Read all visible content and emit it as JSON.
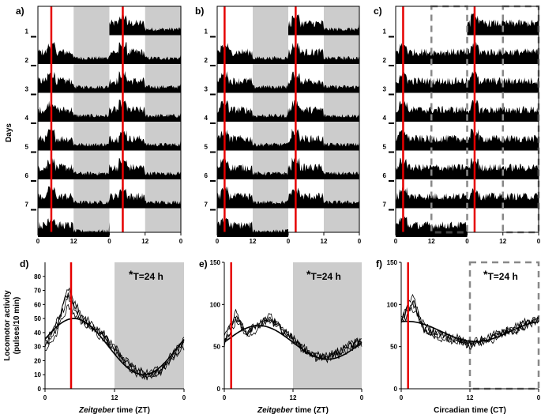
{
  "chart_data": [
    {
      "panel": "a)",
      "type": "actogram",
      "lights_off_shading": true,
      "ylabel": "Days",
      "day_labels": [
        "1",
        "2",
        "3",
        "4",
        "5",
        "6",
        "7"
      ],
      "x_ticks": [
        "0",
        "12",
        "0",
        "12",
        "0"
      ],
      "red_line_zt": 4.5
    },
    {
      "panel": "b)",
      "type": "actogram",
      "lights_off_shading": true,
      "day_labels": [
        "1",
        "2",
        "3",
        "4",
        "5",
        "6",
        "7"
      ],
      "x_ticks": [
        "0",
        "12",
        "0",
        "12",
        "0"
      ],
      "red_line_zt": 2.5
    },
    {
      "panel": "c)",
      "type": "actogram",
      "lights_off_shading": false,
      "dashed_subjective_night": true,
      "day_labels": [
        "1",
        "2",
        "3",
        "4",
        "5",
        "6",
        "7"
      ],
      "x_ticks": [
        "0",
        "12",
        "0",
        "12",
        "0"
      ],
      "red_line_zt": 2.5
    },
    {
      "panel": "d)",
      "type": "line",
      "annotation": "T=24 h",
      "annotation_star": "*",
      "ylabel": "Locomotor activity (pulses/10 min)",
      "ylim": [
        0,
        90
      ],
      "y_ticks": [
        "0",
        "10",
        "20",
        "30",
        "40",
        "50",
        "60",
        "70",
        "80"
      ],
      "x_ticks": [
        "0",
        "12",
        "0"
      ],
      "xlabel_italic": "Zeitgeber",
      "xlabel_rest": " time (ZT)",
      "red_line": 4.5,
      "dark_start": 12,
      "fit": {
        "mean": 30,
        "amp": 20,
        "peak": 5
      },
      "x": [
        0,
        2,
        4,
        6,
        8,
        10,
        12,
        14,
        16,
        18,
        20,
        22,
        24
      ],
      "series": [
        {
          "values": [
            30,
            45,
            65,
            52,
            45,
            38,
            28,
            18,
            12,
            10,
            12,
            22,
            32
          ]
        },
        {
          "values": [
            32,
            42,
            72,
            50,
            44,
            40,
            30,
            20,
            12,
            8,
            14,
            24,
            33
          ]
        },
        {
          "values": [
            28,
            40,
            60,
            48,
            42,
            36,
            27,
            17,
            10,
            9,
            13,
            21,
            30
          ]
        },
        {
          "values": [
            34,
            47,
            68,
            55,
            46,
            39,
            29,
            19,
            13,
            11,
            15,
            25,
            35
          ]
        }
      ]
    },
    {
      "panel": "e)",
      "type": "line",
      "annotation": "T=24 h",
      "annotation_star": "*",
      "ylim": [
        0,
        150
      ],
      "y_ticks": [
        "0",
        "50",
        "100",
        "150"
      ],
      "x_ticks": [
        "0",
        "12",
        "0"
      ],
      "xlabel_italic": "Zeitgeber",
      "xlabel_rest": " time (ZT)",
      "red_line": 1.2,
      "dark_start": 12,
      "fit": {
        "mean": 55,
        "amp": 20,
        "peak": 6
      },
      "x": [
        0,
        2,
        4,
        6,
        8,
        10,
        12,
        14,
        16,
        18,
        20,
        22,
        24
      ],
      "series": [
        {
          "values": [
            55,
            80,
            65,
            75,
            85,
            70,
            60,
            45,
            40,
            40,
            45,
            52,
            58
          ]
        },
        {
          "values": [
            58,
            90,
            68,
            78,
            80,
            72,
            58,
            48,
            38,
            38,
            42,
            50,
            55
          ]
        },
        {
          "values": [
            52,
            85,
            62,
            72,
            90,
            68,
            62,
            42,
            36,
            35,
            40,
            48,
            54
          ]
        },
        {
          "values": [
            60,
            88,
            66,
            76,
            82,
            74,
            56,
            46,
            40,
            37,
            44,
            54,
            60
          ]
        }
      ]
    },
    {
      "panel": "f)",
      "type": "line",
      "annotation": "T=24 h",
      "annotation_star": "*",
      "ylim": [
        0,
        150
      ],
      "y_ticks": [
        "0",
        "50",
        "100",
        "150"
      ],
      "x_ticks": [
        "0",
        "12",
        "0"
      ],
      "xlabel": "Circadian time (CT)",
      "red_line": 1.2,
      "dashed_subjective_night_start": 12,
      "fit": {
        "mean": 68,
        "amp": 12,
        "peak": 1
      },
      "x": [
        0,
        2,
        4,
        6,
        8,
        10,
        12,
        14,
        16,
        18,
        20,
        22,
        24
      ],
      "series": [
        {
          "values": [
            85,
            100,
            75,
            68,
            62,
            58,
            55,
            58,
            62,
            65,
            70,
            75,
            82
          ]
        },
        {
          "values": [
            80,
            110,
            70,
            65,
            60,
            55,
            52,
            55,
            60,
            68,
            72,
            78,
            85
          ]
        },
        {
          "values": [
            78,
            95,
            72,
            62,
            58,
            56,
            54,
            60,
            64,
            66,
            74,
            80,
            80
          ]
        },
        {
          "values": [
            82,
            105,
            68,
            66,
            64,
            60,
            50,
            56,
            58,
            70,
            68,
            76,
            84
          ]
        }
      ]
    }
  ]
}
